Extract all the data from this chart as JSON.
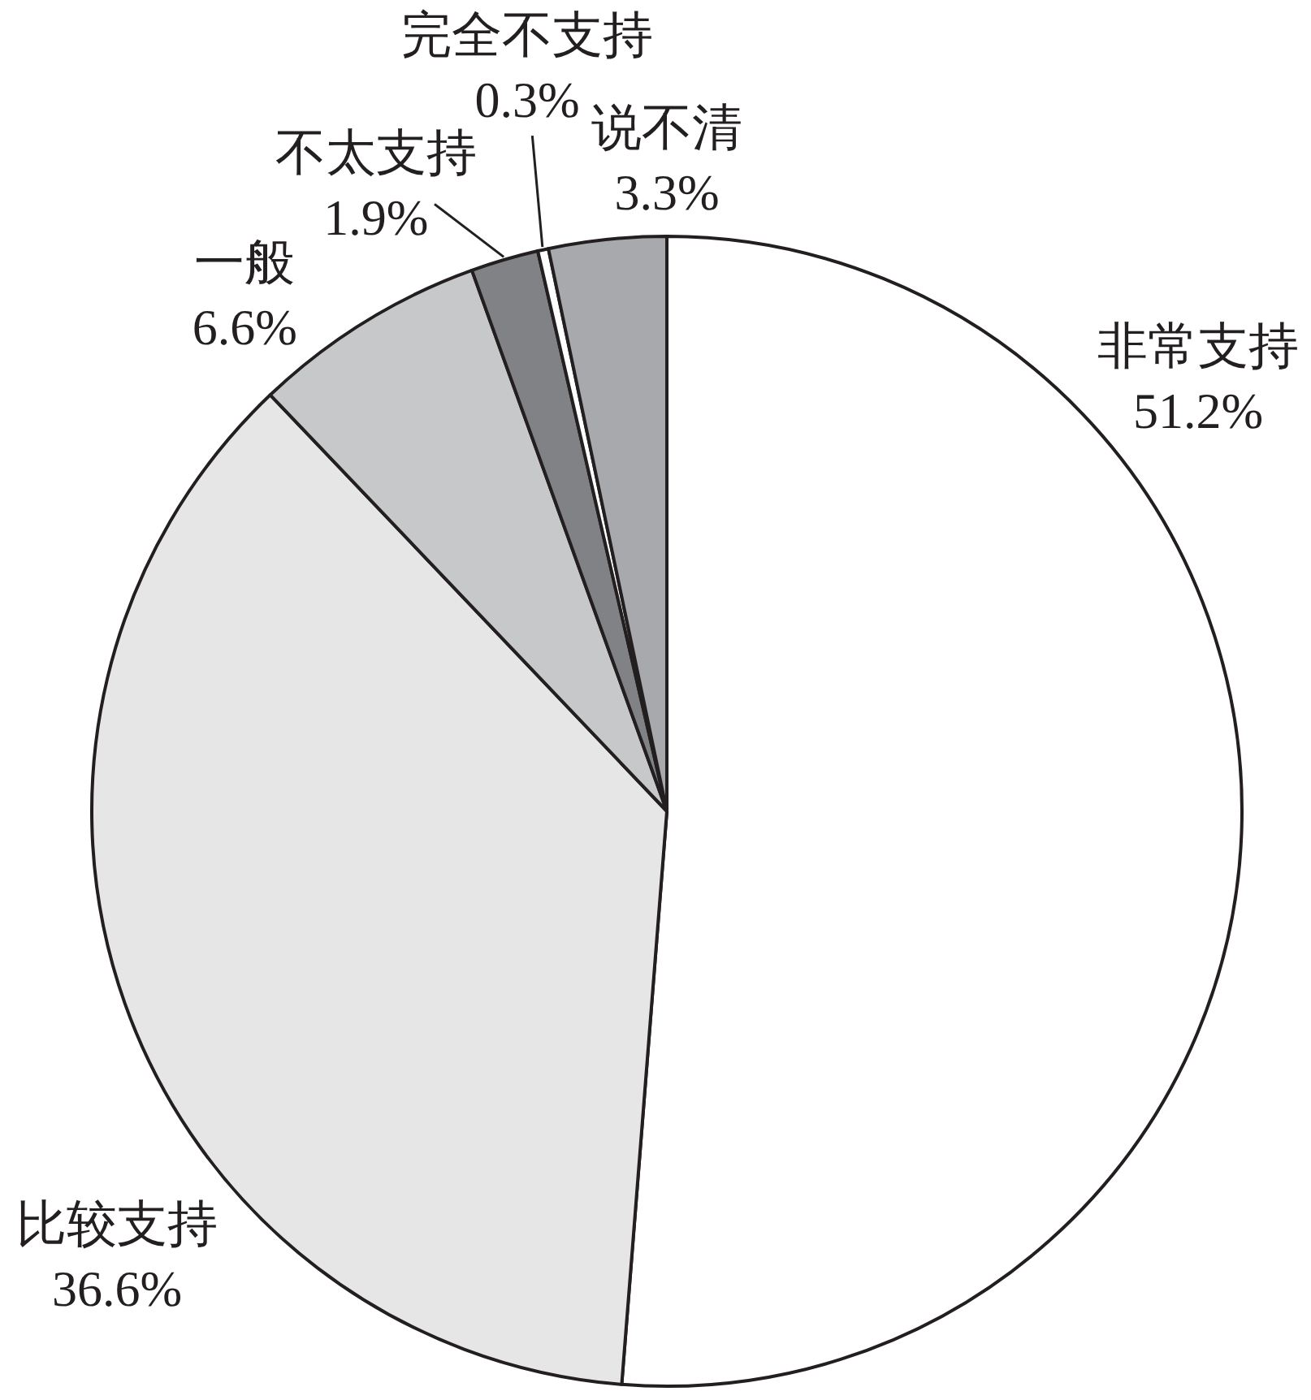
{
  "chart_data": {
    "type": "pie",
    "categories": [
      "非常支持",
      "比较支持",
      "一般",
      "不太支持",
      "完全不支持",
      "说不清"
    ],
    "values": [
      51.2,
      36.6,
      6.6,
      1.9,
      0.3,
      3.3
    ],
    "value_labels": [
      "51.2%",
      "36.6%",
      "6.6%",
      "1.9%",
      "0.3%",
      "3.3%"
    ],
    "colors": [
      "#ffffff",
      "#e6e6e7",
      "#c7c8ca",
      "#808285",
      "#ffffff",
      "#a7a9ac"
    ]
  }
}
